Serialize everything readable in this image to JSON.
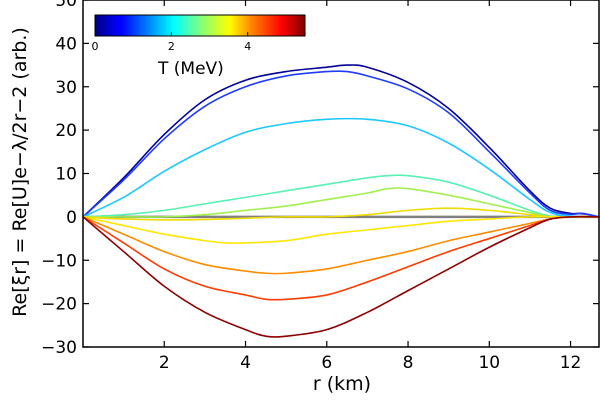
{
  "chart_data": {
    "type": "line",
    "title": "",
    "xlabel": "r (km)",
    "ylabel": "Re[ξr] = Re[U]e−λ/2r−2 (arb.)",
    "xlim": [
      0,
      12.7
    ],
    "ylim": [
      -30,
      50
    ],
    "xticks": [
      2,
      4,
      6,
      8,
      10,
      12
    ],
    "yticks": [
      -30,
      -20,
      -10,
      0,
      10,
      20,
      30,
      40,
      50
    ],
    "grid": false,
    "colorbar": {
      "label": "T (MeV)",
      "range": [
        0,
        5.5
      ],
      "ticks": [
        0,
        2,
        4
      ],
      "colormap": "jet",
      "placement": "top-left"
    },
    "reference_line": {
      "y": 0,
      "color": "#808080"
    },
    "series": [
      {
        "name": "T≈0.1 MeV",
        "color": "#000096",
        "points": [
          [
            0,
            0
          ],
          [
            1,
            9
          ],
          [
            2,
            19
          ],
          [
            3,
            27
          ],
          [
            4,
            31.5
          ],
          [
            5,
            33.5
          ],
          [
            6,
            34.5
          ],
          [
            6.5,
            35
          ],
          [
            7,
            34.5
          ],
          [
            8,
            31
          ],
          [
            9,
            25
          ],
          [
            10,
            16
          ],
          [
            11,
            6
          ],
          [
            11.5,
            2
          ],
          [
            12,
            0.8
          ],
          [
            12.2,
            0.8
          ],
          [
            12.4,
            0.6
          ],
          [
            12.7,
            0
          ]
        ]
      },
      {
        "name": "T≈0.3 MeV",
        "color": "#1e3cff",
        "points": [
          [
            0,
            0
          ],
          [
            1,
            8.5
          ],
          [
            2,
            18
          ],
          [
            3,
            25.5
          ],
          [
            4,
            30
          ],
          [
            5,
            32.5
          ],
          [
            6,
            33.5
          ],
          [
            6.5,
            33.5
          ],
          [
            7,
            32.5
          ],
          [
            8,
            29.5
          ],
          [
            9,
            24
          ],
          [
            10,
            15
          ],
          [
            11,
            5.5
          ],
          [
            11.5,
            1.5
          ],
          [
            12,
            0.6
          ],
          [
            12.3,
            0.8
          ],
          [
            12.7,
            0
          ]
        ]
      },
      {
        "name": "T≈1.5 MeV",
        "color": "#1ec8ff",
        "points": [
          [
            0,
            0
          ],
          [
            1,
            4.5
          ],
          [
            2,
            10.5
          ],
          [
            3,
            15.5
          ],
          [
            4,
            19.5
          ],
          [
            5,
            21.5
          ],
          [
            6,
            22.5
          ],
          [
            7,
            22.5
          ],
          [
            8,
            21
          ],
          [
            9,
            17
          ],
          [
            10,
            11
          ],
          [
            11,
            4
          ],
          [
            11.5,
            1
          ],
          [
            12,
            0.2
          ],
          [
            12.7,
            0
          ]
        ]
      },
      {
        "name": "T≈2.3 MeV",
        "color": "#5af0b4",
        "points": [
          [
            0,
            0
          ],
          [
            1,
            0.5
          ],
          [
            2,
            1.5
          ],
          [
            3,
            3
          ],
          [
            4,
            4.5
          ],
          [
            5,
            6
          ],
          [
            6,
            7.5
          ],
          [
            7,
            9
          ],
          [
            7.5,
            9.5
          ],
          [
            8,
            9.5
          ],
          [
            9,
            8
          ],
          [
            10,
            5
          ],
          [
            11,
            1.5
          ],
          [
            11.5,
            0.2
          ],
          [
            12,
            0
          ],
          [
            12.7,
            0
          ]
        ]
      },
      {
        "name": "T≈2.6 MeV",
        "color": "#a0f050",
        "points": [
          [
            0,
            0
          ],
          [
            1,
            0
          ],
          [
            2,
            0
          ],
          [
            3,
            0.5
          ],
          [
            4,
            1.5
          ],
          [
            5,
            2.5
          ],
          [
            6,
            4
          ],
          [
            7,
            5.5
          ],
          [
            7.5,
            6.5
          ],
          [
            8,
            6.5
          ],
          [
            9,
            5
          ],
          [
            10,
            3
          ],
          [
            11,
            1
          ],
          [
            11.5,
            0
          ],
          [
            12,
            0
          ],
          [
            12.7,
            0
          ]
        ]
      },
      {
        "name": "T≈3.2 MeV",
        "color": "#f0dc00",
        "points": [
          [
            0,
            0
          ],
          [
            0.5,
            -0.3
          ],
          [
            1,
            -0.5
          ],
          [
            2,
            -0.7
          ],
          [
            3,
            -0.6
          ],
          [
            4,
            -0.3
          ],
          [
            5,
            0
          ],
          [
            6,
            0
          ],
          [
            7,
            0.5
          ],
          [
            8,
            1.5
          ],
          [
            9,
            2
          ],
          [
            10,
            1.5
          ],
          [
            11,
            0.5
          ],
          [
            11.5,
            0
          ],
          [
            12,
            0
          ],
          [
            12.7,
            0
          ]
        ]
      },
      {
        "name": "T≈3.5 MeV",
        "color": "#ffe600",
        "points": [
          [
            0,
            0
          ],
          [
            1,
            -2
          ],
          [
            2,
            -4
          ],
          [
            3,
            -5.5
          ],
          [
            3.5,
            -6
          ],
          [
            4,
            -6
          ],
          [
            5,
            -5.5
          ],
          [
            6,
            -4
          ],
          [
            7,
            -3
          ],
          [
            8,
            -2
          ],
          [
            9,
            -1
          ],
          [
            10,
            -0.5
          ],
          [
            11,
            0
          ],
          [
            12,
            0
          ],
          [
            12.7,
            0
          ]
        ]
      },
      {
        "name": "T≈4.0 MeV",
        "color": "#ff8c00",
        "points": [
          [
            0,
            0
          ],
          [
            1,
            -4
          ],
          [
            2,
            -8
          ],
          [
            3,
            -11
          ],
          [
            4,
            -12.5
          ],
          [
            4.5,
            -13
          ],
          [
            5,
            -13
          ],
          [
            6,
            -12
          ],
          [
            7,
            -10
          ],
          [
            8,
            -8
          ],
          [
            9,
            -5.5
          ],
          [
            10,
            -3.5
          ],
          [
            11,
            -1.5
          ],
          [
            11.5,
            -0.5
          ],
          [
            12,
            0
          ],
          [
            12.7,
            0
          ]
        ]
      },
      {
        "name": "T≈4.6 MeV",
        "color": "#ff3c00",
        "points": [
          [
            0,
            0
          ],
          [
            1,
            -6
          ],
          [
            2,
            -12
          ],
          [
            3,
            -16
          ],
          [
            4,
            -18
          ],
          [
            4.5,
            -19
          ],
          [
            5,
            -19
          ],
          [
            6,
            -18
          ],
          [
            7,
            -15
          ],
          [
            8,
            -11.5
          ],
          [
            9,
            -8
          ],
          [
            10,
            -5
          ],
          [
            11,
            -2
          ],
          [
            11.5,
            -0.5
          ],
          [
            12,
            0
          ],
          [
            12.7,
            0
          ]
        ]
      },
      {
        "name": "T≈5.4 MeV",
        "color": "#8c0000",
        "points": [
          [
            0,
            0
          ],
          [
            1,
            -8
          ],
          [
            2,
            -16
          ],
          [
            3,
            -22
          ],
          [
            4,
            -26
          ],
          [
            4.5,
            -27.5
          ],
          [
            5,
            -27.5
          ],
          [
            6,
            -26
          ],
          [
            7,
            -22
          ],
          [
            8,
            -17
          ],
          [
            9,
            -12
          ],
          [
            10,
            -7
          ],
          [
            11,
            -2.5
          ],
          [
            11.5,
            -0.5
          ],
          [
            12,
            0
          ],
          [
            12.7,
            0
          ]
        ]
      }
    ]
  }
}
